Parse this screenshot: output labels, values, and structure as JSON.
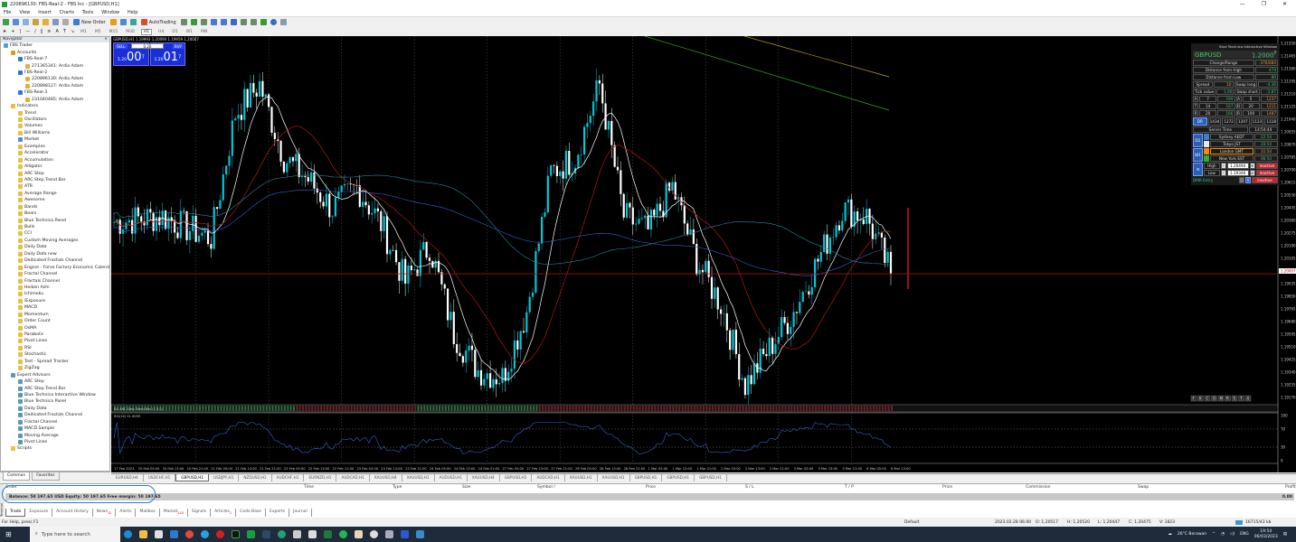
{
  "window": {
    "title": "220896130: FBS-Real-2 - FBS Inc - [GBPUSD,H1]",
    "controls": [
      "—",
      "❐",
      "✕"
    ]
  },
  "menu": [
    "File",
    "View",
    "Insert",
    "Charts",
    "Tools",
    "Window",
    "Help"
  ],
  "toolbar": {
    "new_order": "New Order",
    "autotrading": "AutoTrading"
  },
  "timeframes": [
    "M1",
    "M5",
    "M15",
    "M30",
    "H1",
    "H4",
    "D1",
    "W1",
    "MN"
  ],
  "active_timeframe": "H1",
  "navigator": {
    "title": "Navigator",
    "close": "×",
    "items": [
      {
        "label": "FBS Trader",
        "level": 0,
        "icon": "terminal-icon"
      },
      {
        "label": "Accounts",
        "level": 1,
        "icon": "accounts-icon"
      },
      {
        "label": "FBS-Real-7",
        "level": 2,
        "icon": "server-icon"
      },
      {
        "label": "271365341: Ardia Adam",
        "level": 3,
        "icon": "account-icon"
      },
      {
        "label": "FBS-Real-2",
        "level": 2,
        "icon": "server-icon"
      },
      {
        "label": "220896130: Ardia Adam",
        "level": 3,
        "icon": "account-icon"
      },
      {
        "label": "220898127: Ardia Adam",
        "level": 3,
        "icon": "account-icon"
      },
      {
        "label": "FBS-Real-3",
        "level": 2,
        "icon": "server-icon"
      },
      {
        "label": "231040485: Ardia Adam",
        "level": 3,
        "icon": "account-icon"
      },
      {
        "label": "Indicators",
        "level": 1,
        "icon": "folder-icon"
      },
      {
        "label": "Trend",
        "level": 2,
        "icon": "folder-icon"
      },
      {
        "label": "Oscillators",
        "level": 2,
        "icon": "folder-icon"
      },
      {
        "label": "Volumes",
        "level": 2,
        "icon": "folder-icon"
      },
      {
        "label": "Bill Williams",
        "level": 2,
        "icon": "folder-icon"
      },
      {
        "label": "Market",
        "level": 2,
        "icon": "market-icon"
      },
      {
        "label": "Examples",
        "level": 2,
        "icon": "folder-icon"
      },
      {
        "label": "Accelerator",
        "level": 2,
        "icon": "indicator-icon"
      },
      {
        "label": "Accumulation",
        "level": 2,
        "icon": "indicator-icon"
      },
      {
        "label": "Alligator",
        "level": 2,
        "icon": "indicator-icon"
      },
      {
        "label": "ARC Step",
        "level": 2,
        "icon": "indicator-icon"
      },
      {
        "label": "ARC Step Trend Bar",
        "level": 2,
        "icon": "indicator-icon"
      },
      {
        "label": "ATR",
        "level": 2,
        "icon": "indicator-icon"
      },
      {
        "label": "Average Range",
        "level": 2,
        "icon": "indicator-icon"
      },
      {
        "label": "Awesome",
        "level": 2,
        "icon": "indicator-icon"
      },
      {
        "label": "Bands",
        "level": 2,
        "icon": "indicator-icon"
      },
      {
        "label": "Bears",
        "level": 2,
        "icon": "indicator-icon"
      },
      {
        "label": "Blue Technica Panel",
        "level": 2,
        "icon": "indicator-icon"
      },
      {
        "label": "Bulls",
        "level": 2,
        "icon": "indicator-icon"
      },
      {
        "label": "CCI",
        "level": 2,
        "icon": "indicator-icon"
      },
      {
        "label": "Custom Moving Averages",
        "level": 2,
        "icon": "indicator-icon"
      },
      {
        "label": "Daily Data",
        "level": 2,
        "icon": "indicator-icon"
      },
      {
        "label": "Daily Data new",
        "level": 2,
        "icon": "indicator-icon"
      },
      {
        "label": "Dedicated Fractals Channel",
        "level": 2,
        "icon": "indicator-icon"
      },
      {
        "label": "Engine - Forex Factory Economic Calendar",
        "level": 2,
        "icon": "indicator-icon"
      },
      {
        "label": "Fractal Channel",
        "level": 2,
        "icon": "indicator-icon"
      },
      {
        "label": "Fractals Channel",
        "level": 2,
        "icon": "indicator-icon"
      },
      {
        "label": "Heiken Ashi",
        "level": 2,
        "icon": "indicator-icon"
      },
      {
        "label": "Ichimoku",
        "level": 2,
        "icon": "indicator-icon"
      },
      {
        "label": "iExposure",
        "level": 2,
        "icon": "indicator-icon"
      },
      {
        "label": "MACD",
        "level": 2,
        "icon": "indicator-icon"
      },
      {
        "label": "Momentum",
        "level": 2,
        "icon": "indicator-icon"
      },
      {
        "label": "Order Count",
        "level": 2,
        "icon": "indicator-icon"
      },
      {
        "label": "OsMA",
        "level": 2,
        "icon": "indicator-icon"
      },
      {
        "label": "Parabolic",
        "level": 2,
        "icon": "indicator-icon"
      },
      {
        "label": "Pivot Lines",
        "level": 2,
        "icon": "indicator-icon"
      },
      {
        "label": "RSI",
        "level": 2,
        "icon": "indicator-icon"
      },
      {
        "label": "Stochastic",
        "level": 2,
        "icon": "indicator-icon"
      },
      {
        "label": "Test - Spread Tracker",
        "level": 2,
        "icon": "indicator-icon"
      },
      {
        "label": "ZigZag",
        "level": 2,
        "icon": "indicator-icon"
      },
      {
        "label": "Expert Advisors",
        "level": 1,
        "icon": "expert-icon"
      },
      {
        "label": "ARC Step",
        "level": 2,
        "icon": "expert-icon"
      },
      {
        "label": "ARC Step Trend Bar",
        "level": 2,
        "icon": "expert-icon"
      },
      {
        "label": "Blue Technica Interactive Window",
        "level": 2,
        "icon": "expert-icon"
      },
      {
        "label": "Blue Technica Panel",
        "level": 2,
        "icon": "expert-icon"
      },
      {
        "label": "Daily Data",
        "level": 2,
        "icon": "expert-icon"
      },
      {
        "label": "Dedicated Fractals Channel",
        "level": 2,
        "icon": "expert-icon"
      },
      {
        "label": "Fractal Channel",
        "level": 2,
        "icon": "expert-icon"
      },
      {
        "label": "MACD Sample",
        "level": 2,
        "icon": "expert-icon"
      },
      {
        "label": "Moving Average",
        "level": 2,
        "icon": "expert-icon"
      },
      {
        "label": "Pivot Lines",
        "level": 2,
        "icon": "expert-icon"
      },
      {
        "label": "Scripts",
        "level": 1,
        "icon": "folder-icon"
      }
    ],
    "tabs": [
      "Common",
      "Favorites"
    ]
  },
  "chart": {
    "header": "GBPUSD,H1  1.19993 1.20090 1.19959 1.20007",
    "one_click": {
      "sell": "SELL",
      "buy": "BUY",
      "lot": "0.20",
      "bid_prefix": "1.20",
      "bid_big": "00",
      "bid_sup": "7",
      "ask_prefix": "1.20",
      "ask_big": "01",
      "ask_sup": "7"
    },
    "current_price": "1.20007",
    "price_labels": [
      "1.21550",
      "1.21465",
      "1.21380",
      "1.21295",
      "1.21210",
      "1.21125",
      "1.21040",
      "1.20955",
      "1.20870",
      "1.20785",
      "1.20700",
      "1.20615",
      "1.20530",
      "1.20445",
      "1.20360",
      "1.20275",
      "1.20190",
      "1.20105",
      "1.20007",
      "1.19935",
      "1.19850",
      "1.19765",
      "1.19680",
      "1.19595",
      "1.19510",
      "1.19425",
      "1.19340",
      "1.19255",
      "1.19170"
    ],
    "time_labels": [
      "17 Feb 2023",
      "20 Feb 05:00",
      "20 Feb 13:00",
      "20 Feb 21:00",
      "21 Feb 05:00",
      "21 Feb 13:00",
      "21 Feb 21:00",
      "22 Feb 05:00",
      "22 Feb 13:00",
      "22 Feb 21:00",
      "23 Feb 05:00",
      "23 Feb 13:00",
      "23 Feb 21:00",
      "24 Feb 05:00",
      "24 Feb 13:00",
      "24 Feb 21:00",
      "27 Feb 05:00",
      "27 Feb 13:00",
      "27 Feb 21:00",
      "28 Feb 05:00",
      "28 Feb 13:00",
      "28 Feb 21:00",
      "1 Mar 05:00",
      "1 Mar 13:00",
      "1 Mar 21:00",
      "2 Mar 05:00",
      "2 Mar 13:00",
      "2 Mar 21:00",
      "3 Mar 05:00",
      "3 Mar 13:00",
      "3 Mar 21:00",
      "6 Mar 05:00",
      "6 Mar 13:00"
    ],
    "approx_close_at_time_labels": [
      1.2036,
      1.2038,
      1.204,
      1.2032,
      1.2025,
      1.211,
      1.213,
      1.208,
      1.2065,
      1.2045,
      1.206,
      1.2035,
      1.1995,
      1.202,
      1.196,
      1.1935,
      1.193,
      1.1975,
      1.207,
      1.208,
      1.213,
      1.204,
      1.203,
      1.206,
      1.201,
      1.198,
      1.1925,
      1.195,
      1.1975,
      1.201,
      1.2045,
      1.204,
      1.2001
    ],
    "price_range": [
      1.1912,
      1.2158
    ],
    "trend_bar_label": "H1 ARC Step Trend Bar (7,3,0)",
    "rsi_label": "RSI(14) 41.6099",
    "rsi_levels": [
      "100",
      "70",
      "30",
      "0"
    ],
    "bottom_buttons": [
      "F",
      "K",
      "C",
      "O",
      "M",
      "R",
      "S",
      "T",
      "A"
    ],
    "colors": {
      "bull": "#00c8d8",
      "bear": "#ffffff",
      "ma_fast": "#ffffff",
      "ma_slow": "#b01818",
      "ma_blue": "#3a5fd0",
      "ma_teal": "#2a8a9a",
      "ma_green": "#3fa02a",
      "ma_yellow": "#b8a020",
      "current_line": "#c01010"
    }
  },
  "panel": {
    "title": "Blue Technica Interactive Window",
    "symbol": "GBPUSD",
    "price": "1.2000",
    "price_sup": "7",
    "change_range_label": "Change/Range",
    "change_range": "-376/684",
    "dist_high_label": "Distance from High",
    "dist_high": "474",
    "dist_low_label": "Distance from Low",
    "dist_low": "80",
    "spread_label": "Spread",
    "spread": "10",
    "swap_long_label": "Swap long",
    "swap_long": "-4.36",
    "tick_label": "Tick value",
    "tick": "1.00",
    "swap_short_label": "Swap short",
    "swap_short": "-3.87",
    "atr_label": "ATR",
    "adr_label": "ADR",
    "atr": [
      [
        "7",
        "199"
      ],
      [
        "14",
        "167"
      ],
      [
        "20",
        "166"
      ]
    ],
    "adr": [
      [
        "5",
        "1237"
      ],
      [
        "20",
        "1211"
      ],
      [
        "100",
        "1487"
      ]
    ],
    "dr_label": "DR",
    "dr": [
      "1434",
      "1272",
      "1207",
      "1123",
      "1118"
    ],
    "server_time_label": "Server Time",
    "server_time": "14:54:44",
    "d1": "D1",
    "w1": "W1",
    "sessions": [
      {
        "name": "Sydney AEDT",
        "time": "22:54",
        "color": "#3a7fd0"
      },
      {
        "name": "Tokyo JST",
        "time": "20:54",
        "color": "#e8e8e8"
      },
      {
        "name": "London GMT",
        "time": "11:54",
        "color": "#f08a00"
      },
      {
        "name": "New York EST",
        "time": "06:54",
        "color": "#30b030"
      }
    ],
    "high_label": "High",
    "high": "1.20494",
    "low_label": "Low",
    "low": "1.19346",
    "inactive": "inactive",
    "dmr_label": "DMR Entry",
    "v": "V"
  },
  "chart_tabs": [
    "EURUSD,H4",
    "USDCHF,H1",
    "GBPUSD,H1",
    "USDJPY,H1",
    "NZDUSD,H1",
    "AUDCHF,H1",
    "EURNZD,H1",
    "AUDCAD,H1",
    "XAUUSD,H4",
    "XAUUSD,H1",
    "AUDUSD,H1",
    "XAUUSD,H4",
    "GBPUSD,H1",
    "AUDCAD,H1",
    "XAUUSD,H1",
    "XAUUSD,H1",
    "GBPUSD,H1",
    "GBPUSD,H1",
    "GBPUSD,H1"
  ],
  "active_chart_tab": 2,
  "terminal": {
    "columns": [
      "Order",
      "Time",
      "Type",
      "Size",
      "Symbol  /",
      "Price",
      "S / L",
      "T / P",
      "Price",
      "Commission",
      "Swap",
      "Profit"
    ],
    "balance_text": "Balance: 50 197.65 USD  Equity: 50 197.65  Free margin: 50 197.65",
    "profit": "0.00",
    "side_label": "Terminal",
    "tabs": [
      {
        "label": "Trade"
      },
      {
        "label": "Exposure"
      },
      {
        "label": "Account History"
      },
      {
        "label": "News",
        "badge": "12"
      },
      {
        "label": "Alerts"
      },
      {
        "label": "Mailbox"
      },
      {
        "label": "Market",
        "badge": "143"
      },
      {
        "label": "Signals"
      },
      {
        "label": "Articles",
        "badge": "1"
      },
      {
        "label": "Code Base"
      },
      {
        "label": "Experts"
      },
      {
        "label": "Journal"
      }
    ]
  },
  "status": {
    "help": "For Help, press F1",
    "profile": "Default",
    "datetime": "2023.02.28 06:00",
    "open": "O: 1.20517",
    "high": "H: 1.20520",
    "low": "L: 1.20447",
    "close": "C: 1.20475",
    "volume": "V: 1823",
    "traffic": "16715/43 kb"
  },
  "taskbar": {
    "search_placeholder": "Type here to search",
    "weather": "26°C  Berawan",
    "lang": "ENG",
    "time": "19:54",
    "date": "06/03/2023"
  }
}
